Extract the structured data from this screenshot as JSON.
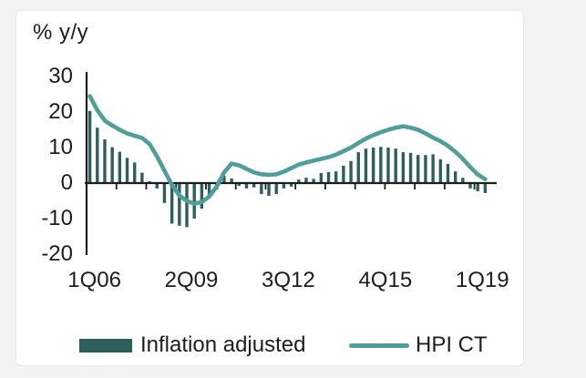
{
  "page": {
    "background": "#f3f3f4",
    "card_background": "#ffffff",
    "card_border": "#e8e8e8",
    "axis_color": "#1d1d1b",
    "text_color": "#1d1d1b"
  },
  "chart_data": {
    "type": "bar+line",
    "title": "",
    "ylabel": "% y/y",
    "xlabel": "",
    "ylim": [
      -20,
      30
    ],
    "y_ticks": [
      30,
      20,
      10,
      0,
      -10,
      -20
    ],
    "grid": false,
    "legend_position": "bottom",
    "x_tick_labels": [
      "1Q06",
      "2Q09",
      "3Q12",
      "4Q15",
      "1Q19"
    ],
    "x_tick_indices": [
      0,
      13,
      26,
      39,
      52
    ],
    "categories": [
      "1Q06",
      "2Q06",
      "3Q06",
      "4Q06",
      "1Q07",
      "2Q07",
      "3Q07",
      "4Q07",
      "1Q08",
      "2Q08",
      "3Q08",
      "4Q08",
      "1Q09",
      "2Q09",
      "3Q09",
      "4Q09",
      "1Q10",
      "2Q10",
      "3Q10",
      "4Q10",
      "1Q11",
      "2Q11",
      "3Q11",
      "4Q11",
      "1Q12",
      "2Q12",
      "3Q12",
      "4Q12",
      "1Q13",
      "2Q13",
      "3Q13",
      "4Q13",
      "1Q14",
      "2Q14",
      "3Q14",
      "4Q14",
      "1Q15",
      "2Q15",
      "3Q15",
      "4Q15",
      "1Q16",
      "2Q16",
      "3Q16",
      "4Q16",
      "1Q17",
      "2Q17",
      "3Q17",
      "4Q17",
      "1Q18",
      "2Q18",
      "3Q18",
      "4Q18",
      "1Q19",
      "2Q19"
    ],
    "series": [
      {
        "name": "Inflation adjusted",
        "type": "bar",
        "color": "#2d5f5e",
        "values": [
          20.3,
          15.6,
          12.3,
          10.1,
          8.8,
          7.1,
          5.8,
          2.9,
          0.5,
          -1.5,
          -5.6,
          -11.4,
          -12.0,
          -12.4,
          -10.0,
          -7.2,
          -3.3,
          -1.8,
          2.0,
          1.3,
          -0.8,
          -1.5,
          -1.2,
          -3.1,
          -3.6,
          -3.1,
          -1.5,
          -1.0,
          1.0,
          1.5,
          1.2,
          2.8,
          3.1,
          3.3,
          4.9,
          6.2,
          8.7,
          9.7,
          10.0,
          10.2,
          10.0,
          9.7,
          8.7,
          8.5,
          7.9,
          7.9,
          8.1,
          6.7,
          5.4,
          3.3,
          1.5,
          -1.5,
          -2.3,
          -2.8
        ]
      },
      {
        "name": "HPI CT",
        "type": "line",
        "color": "#4f9e99",
        "values": [
          24.5,
          20.5,
          17.6,
          16.2,
          15.0,
          14.0,
          13.3,
          12.7,
          11.0,
          7.5,
          3.5,
          -0.5,
          -3.5,
          -5.0,
          -5.8,
          -5.3,
          -3.8,
          -1.0,
          3.0,
          5.5,
          5.0,
          4.0,
          3.0,
          2.5,
          2.3,
          2.5,
          3.2,
          4.2,
          5.2,
          5.8,
          6.3,
          6.8,
          7.3,
          8.0,
          9.0,
          10.0,
          11.3,
          12.5,
          13.5,
          14.3,
          15.0,
          15.6,
          16.0,
          15.6,
          15.0,
          14.0,
          12.8,
          11.8,
          10.5,
          8.8,
          6.8,
          4.5,
          2.4,
          1.1
        ]
      }
    ]
  },
  "legend": {
    "items": [
      {
        "label": "Inflation adjusted",
        "swatch": "bar"
      },
      {
        "label": "HPI CT",
        "swatch": "line"
      }
    ]
  }
}
